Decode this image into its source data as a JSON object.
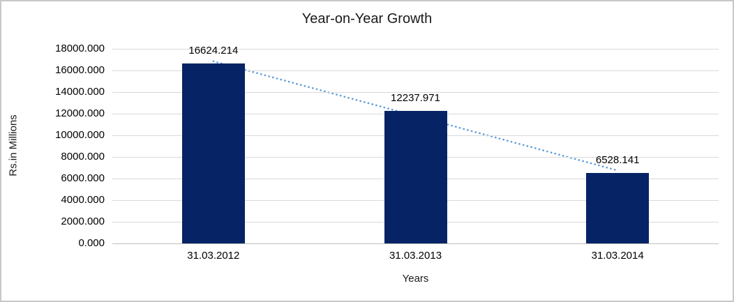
{
  "chart_data": {
    "type": "bar",
    "title": "Year-on-Year Growth",
    "xlabel": "Years",
    "ylabel": "Rs.in Millions",
    "categories": [
      "31.03.2012",
      "31.03.2013",
      "31.03.2014"
    ],
    "values": [
      16624.214,
      12237.971,
      6528.141
    ],
    "data_labels": [
      "16624.214",
      "12237.971",
      "6528.141"
    ],
    "ylim": [
      0,
      18000
    ],
    "ytick_step": 2000,
    "ytick_labels": [
      "0.000",
      "2000.000",
      "4000.000",
      "6000.000",
      "8000.000",
      "10000.000",
      "12000.000",
      "14000.000",
      "16000.000",
      "18000.000"
    ],
    "grid": true,
    "legend": "none",
    "trendline": {
      "type": "linear",
      "style": "dotted",
      "color": "#5b9bd5"
    }
  },
  "colors": {
    "bar": "#062465",
    "trendline": "#5b9bd5",
    "gridline": "#d9d9d9",
    "axis_line": "#bfbfbf",
    "text": "#000000",
    "chart_border": "#c8c8c8",
    "background": "#ffffff"
  }
}
